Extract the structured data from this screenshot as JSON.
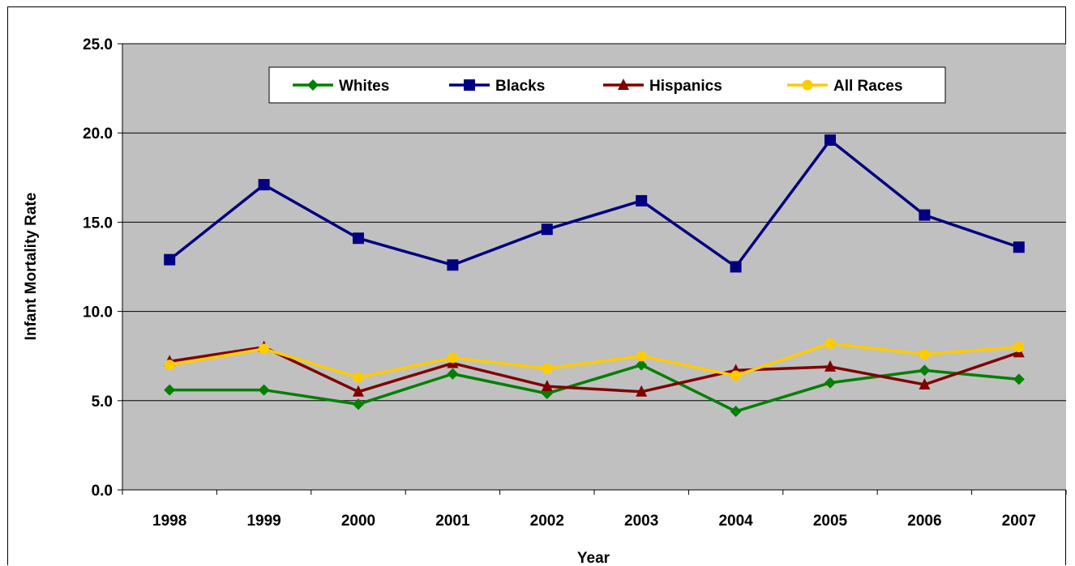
{
  "chart_data": {
    "type": "line",
    "title": "",
    "xlabel": "Year",
    "ylabel": "Infant Mortality Rate",
    "categories": [
      "1998",
      "1999",
      "2000",
      "2001",
      "2002",
      "2003",
      "2004",
      "2005",
      "2006",
      "2007"
    ],
    "ylim": [
      0,
      25
    ],
    "yticks": [
      "0.0",
      "5.0",
      "10.0",
      "15.0",
      "20.0",
      "25.0"
    ],
    "grid": true,
    "legend_position": "top",
    "plot_background": "#C0C0C0",
    "series": [
      {
        "name": "Whites",
        "color": "#008000",
        "marker": "diamond",
        "values": [
          5.6,
          5.6,
          4.8,
          6.5,
          5.4,
          7.0,
          4.4,
          6.0,
          6.7,
          6.2
        ]
      },
      {
        "name": "Blacks",
        "color": "#000080",
        "marker": "square",
        "values": [
          12.9,
          17.1,
          14.1,
          12.6,
          14.6,
          16.2,
          12.5,
          19.6,
          15.4,
          13.6
        ]
      },
      {
        "name": "Hispanics",
        "color": "#800000",
        "marker": "triangle",
        "values": [
          7.2,
          8.0,
          5.5,
          7.1,
          5.8,
          5.5,
          6.7,
          6.9,
          5.9,
          7.7
        ]
      },
      {
        "name": "All Races",
        "color": "#FFCC00",
        "marker": "circle",
        "values": [
          7.0,
          7.9,
          6.3,
          7.4,
          6.8,
          7.5,
          6.4,
          8.2,
          7.6,
          8.0
        ]
      }
    ]
  }
}
